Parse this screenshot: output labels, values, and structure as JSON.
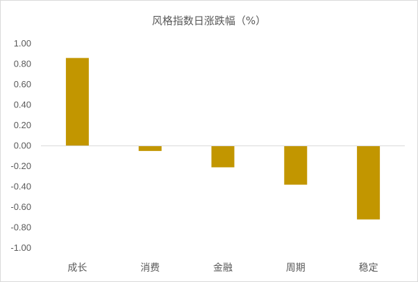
{
  "chart_data": {
    "type": "bar",
    "title": "风格指数日涨跌幅（%）",
    "xlabel": "",
    "ylabel": "",
    "categories": [
      "成长",
      "消费",
      "金融",
      "周期",
      "稳定"
    ],
    "values": [
      0.86,
      -0.05,
      -0.21,
      -0.38,
      -0.72
    ],
    "ylim": [
      -1.0,
      1.0
    ],
    "yticks": [
      "1.00",
      "0.80",
      "0.60",
      "0.40",
      "0.20",
      "0.00",
      "-0.20",
      "-0.40",
      "-0.60",
      "-0.80",
      "-1.00"
    ],
    "grid": false,
    "legend": "none",
    "bar_color": "#C29600",
    "axis_color": "#d9d9d9",
    "text_color": "#595959"
  }
}
